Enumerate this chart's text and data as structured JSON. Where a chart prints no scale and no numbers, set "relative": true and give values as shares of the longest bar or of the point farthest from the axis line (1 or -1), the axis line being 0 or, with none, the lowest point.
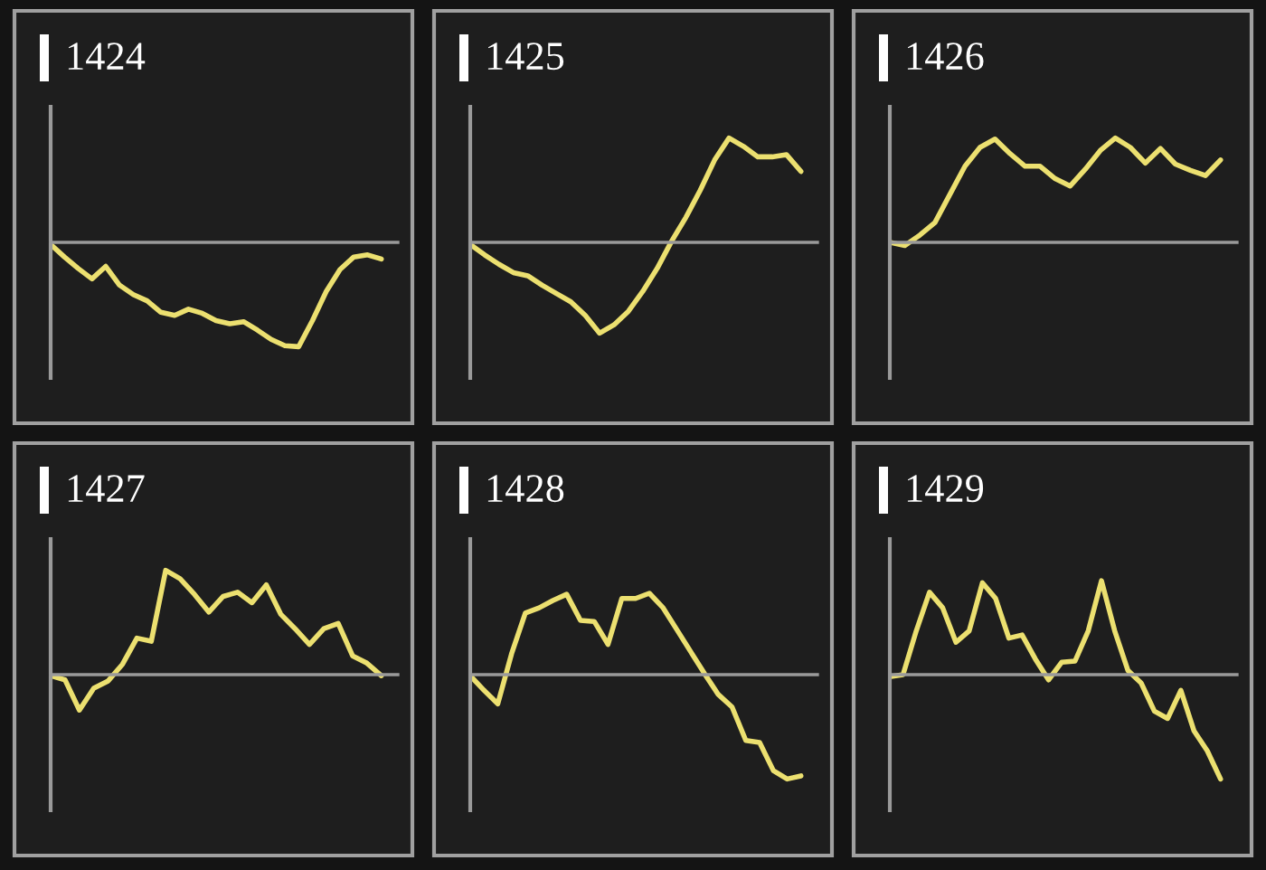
{
  "chart_data": [
    {
      "type": "line",
      "title": "1424",
      "relative": true,
      "categories": [
        null,
        null,
        null,
        null,
        null,
        null,
        null,
        null,
        null,
        null,
        null,
        null,
        null,
        null,
        null,
        null,
        null,
        null,
        null,
        null,
        null,
        null,
        null,
        null,
        null
      ],
      "series": [
        {
          "color": "#ece070",
          "values": [
            -0.02,
            -0.14,
            -0.25,
            -0.35,
            -0.23,
            -0.41,
            -0.5,
            -0.56,
            -0.67,
            -0.7,
            -0.64,
            -0.68,
            -0.75,
            -0.78,
            -0.76,
            -0.84,
            -0.93,
            -0.99,
            -1,
            -0.75,
            -0.47,
            -0.26,
            -0.14,
            -0.12,
            -0.16
          ]
        }
      ]
    },
    {
      "type": "line",
      "title": "1425",
      "relative": true,
      "categories": [
        null,
        null,
        null,
        null,
        null,
        null,
        null,
        null,
        null,
        null,
        null,
        null,
        null,
        null,
        null,
        null,
        null,
        null,
        null,
        null,
        null,
        null,
        null,
        null
      ],
      "series": [
        {
          "color": "#ece070",
          "values": [
            -0.02,
            -0.12,
            -0.21,
            -0.29,
            -0.32,
            -0.41,
            -0.49,
            -0.57,
            -0.7,
            -0.87,
            -0.79,
            -0.66,
            -0.47,
            -0.25,
            0.01,
            0.24,
            0.5,
            0.79,
            1,
            0.92,
            0.82,
            0.82,
            0.84,
            0.68
          ]
        }
      ]
    },
    {
      "type": "line",
      "title": "1426",
      "relative": true,
      "categories": [
        null,
        null,
        null,
        null,
        null,
        null,
        null,
        null,
        null,
        null,
        null,
        null,
        null,
        null,
        null,
        null,
        null,
        null,
        null,
        null,
        null,
        null,
        null
      ],
      "series": [
        {
          "color": "#ece070",
          "values": [
            0,
            -0.03,
            0.07,
            0.19,
            0.46,
            0.73,
            0.91,
            0.99,
            0.85,
            0.73,
            0.73,
            0.61,
            0.54,
            0.7,
            0.88,
            1,
            0.91,
            0.76,
            0.9,
            0.75,
            0.69,
            0.64,
            0.79
          ]
        }
      ]
    },
    {
      "type": "line",
      "title": "1427",
      "relative": true,
      "categories": [
        null,
        null,
        null,
        null,
        null,
        null,
        null,
        null,
        null,
        null,
        null,
        null,
        null,
        null,
        null,
        null,
        null,
        null,
        null,
        null,
        null,
        null,
        null,
        null
      ],
      "series": [
        {
          "color": "#ece070",
          "values": [
            -0.01,
            -0.05,
            -0.34,
            -0.13,
            -0.06,
            0.1,
            0.35,
            0.32,
            1,
            0.92,
            0.77,
            0.6,
            0.75,
            0.79,
            0.69,
            0.86,
            0.58,
            0.44,
            0.29,
            0.44,
            0.49,
            0.18,
            0.11,
            -0.01
          ]
        }
      ]
    },
    {
      "type": "line",
      "title": "1428",
      "relative": true,
      "categories": [
        null,
        null,
        null,
        null,
        null,
        null,
        null,
        null,
        null,
        null,
        null,
        null,
        null,
        null,
        null,
        null,
        null,
        null,
        null,
        null,
        null,
        null,
        null,
        null,
        null
      ],
      "series": [
        {
          "color": "#ece070",
          "values": [
            -0.01,
            -0.15,
            -0.28,
            0.2,
            0.59,
            0.64,
            0.71,
            0.77,
            0.52,
            0.51,
            0.29,
            0.73,
            0.73,
            0.78,
            0.64,
            0.43,
            0.22,
            0.01,
            -0.19,
            -0.31,
            -0.63,
            -0.65,
            -0.92,
            -1,
            -0.97
          ]
        }
      ]
    },
    {
      "type": "line",
      "title": "1429",
      "relative": true,
      "categories": [
        null,
        null,
        null,
        null,
        null,
        null,
        null,
        null,
        null,
        null,
        null,
        null,
        null,
        null,
        null,
        null,
        null,
        null,
        null,
        null,
        null,
        null,
        null,
        null,
        null,
        null
      ],
      "series": [
        {
          "color": "#ece070",
          "values": [
            -0.02,
            0,
            0.42,
            0.79,
            0.64,
            0.31,
            0.42,
            0.88,
            0.73,
            0.35,
            0.38,
            0.15,
            -0.05,
            0.12,
            0.13,
            0.42,
            0.9,
            0.42,
            0.04,
            -0.08,
            -0.35,
            -0.42,
            -0.15,
            -0.54,
            -0.73,
            -1
          ]
        }
      ]
    }
  ]
}
